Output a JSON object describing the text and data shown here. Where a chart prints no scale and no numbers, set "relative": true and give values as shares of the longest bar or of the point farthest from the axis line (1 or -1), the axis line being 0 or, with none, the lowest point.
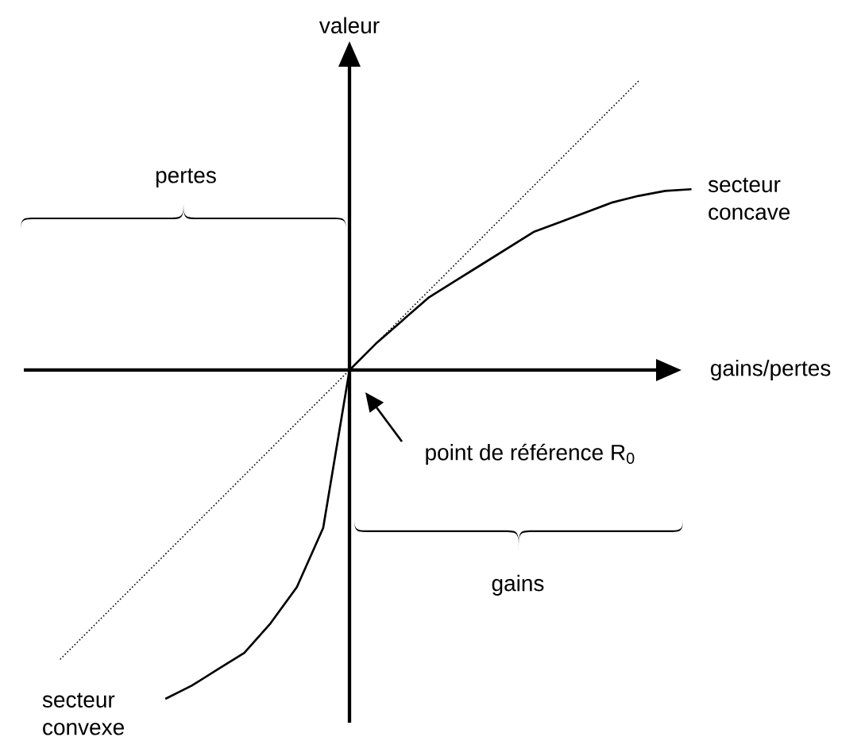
{
  "chart_data": {
    "type": "line",
    "relative": true,
    "xlabel": "gains/pertes",
    "ylabel": "valeur",
    "categories": [
      null,
      null,
      null,
      null,
      null,
      null,
      null,
      null,
      null,
      null,
      null,
      null,
      null,
      null,
      null,
      null,
      null,
      null,
      null,
      null,
      null,
      null,
      null,
      null,
      null
    ],
    "series": [
      {
        "color": "#000000",
        "line_style": "solid",
        "values": [
          null,
          null,
          null,
          null,
          -1.0,
          -0.96,
          -0.91,
          -0.86,
          -0.77,
          -0.66,
          -0.48,
          0,
          0.08,
          0.15,
          0.22,
          0.27,
          0.32,
          0.37,
          0.42,
          0.45,
          0.48,
          0.51,
          0.53,
          0.545,
          0.55
        ]
      },
      {
        "color": "#000000",
        "line_style": "dotted",
        "values": [
          -0.88,
          -0.8,
          -0.72,
          -0.64,
          -0.56,
          -0.48,
          -0.4,
          -0.32,
          -0.24,
          -0.16,
          -0.08,
          0,
          0.08,
          0.16,
          0.24,
          0.32,
          0.4,
          0.48,
          0.56,
          0.64,
          0.72,
          0.8,
          0.88,
          null,
          null
        ]
      }
    ],
    "annotations": [
      "pertes",
      "gains",
      "secteur concave",
      "secteur convexe",
      "point de référence R$_{0}$"
    ]
  }
}
